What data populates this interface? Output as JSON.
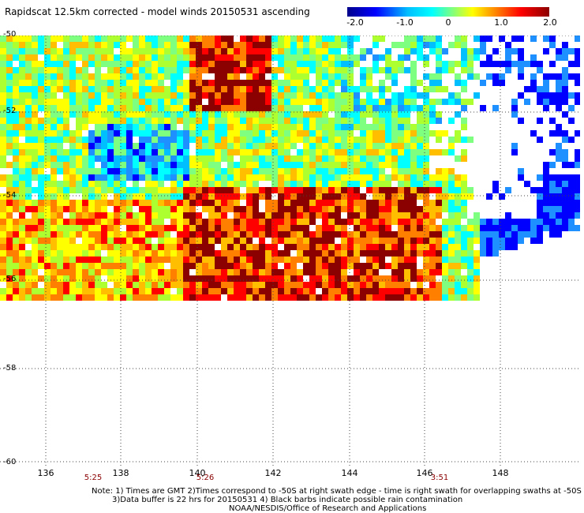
{
  "title": "Rapidscat 12.5km corrected - model winds 20150531 ascending",
  "colorbar": {
    "ticks": [
      "-2.0",
      "-1.0",
      "0",
      "1.0",
      "2.0"
    ],
    "colors": [
      "#00008b",
      "#0000ff",
      "#00bfff",
      "#00ffff",
      "#7fff7f",
      "#ffff00",
      "#ff7f00",
      "#ff0000",
      "#8b0000"
    ]
  },
  "map": {
    "lat_labels": [
      "-50",
      "-52",
      "-54",
      "-56",
      "-58",
      "-60"
    ],
    "lon_labels": [
      "136",
      "138",
      "140",
      "142",
      "144",
      "146",
      "148"
    ],
    "lon_range": [
      135.5,
      149.8
    ],
    "lat_range": [
      -50,
      -60
    ]
  },
  "times": [
    {
      "label": "5:25",
      "lon": 137.2
    },
    {
      "label": "5:26",
      "lon": 140.2
    },
    {
      "label": "3:51",
      "lon": 146.4
    }
  ],
  "notes": [
    "Note: 1) Times are GMT 2)Times correspond to -50S at right swath edge - time is right swath for overlapping swaths at -50S",
    "3)Data buffer is 22 hrs for 20150531 4) Black barbs indicate possible rain contamination",
    "NOAA/NESDIS/Office of Research and Applications"
  ]
}
